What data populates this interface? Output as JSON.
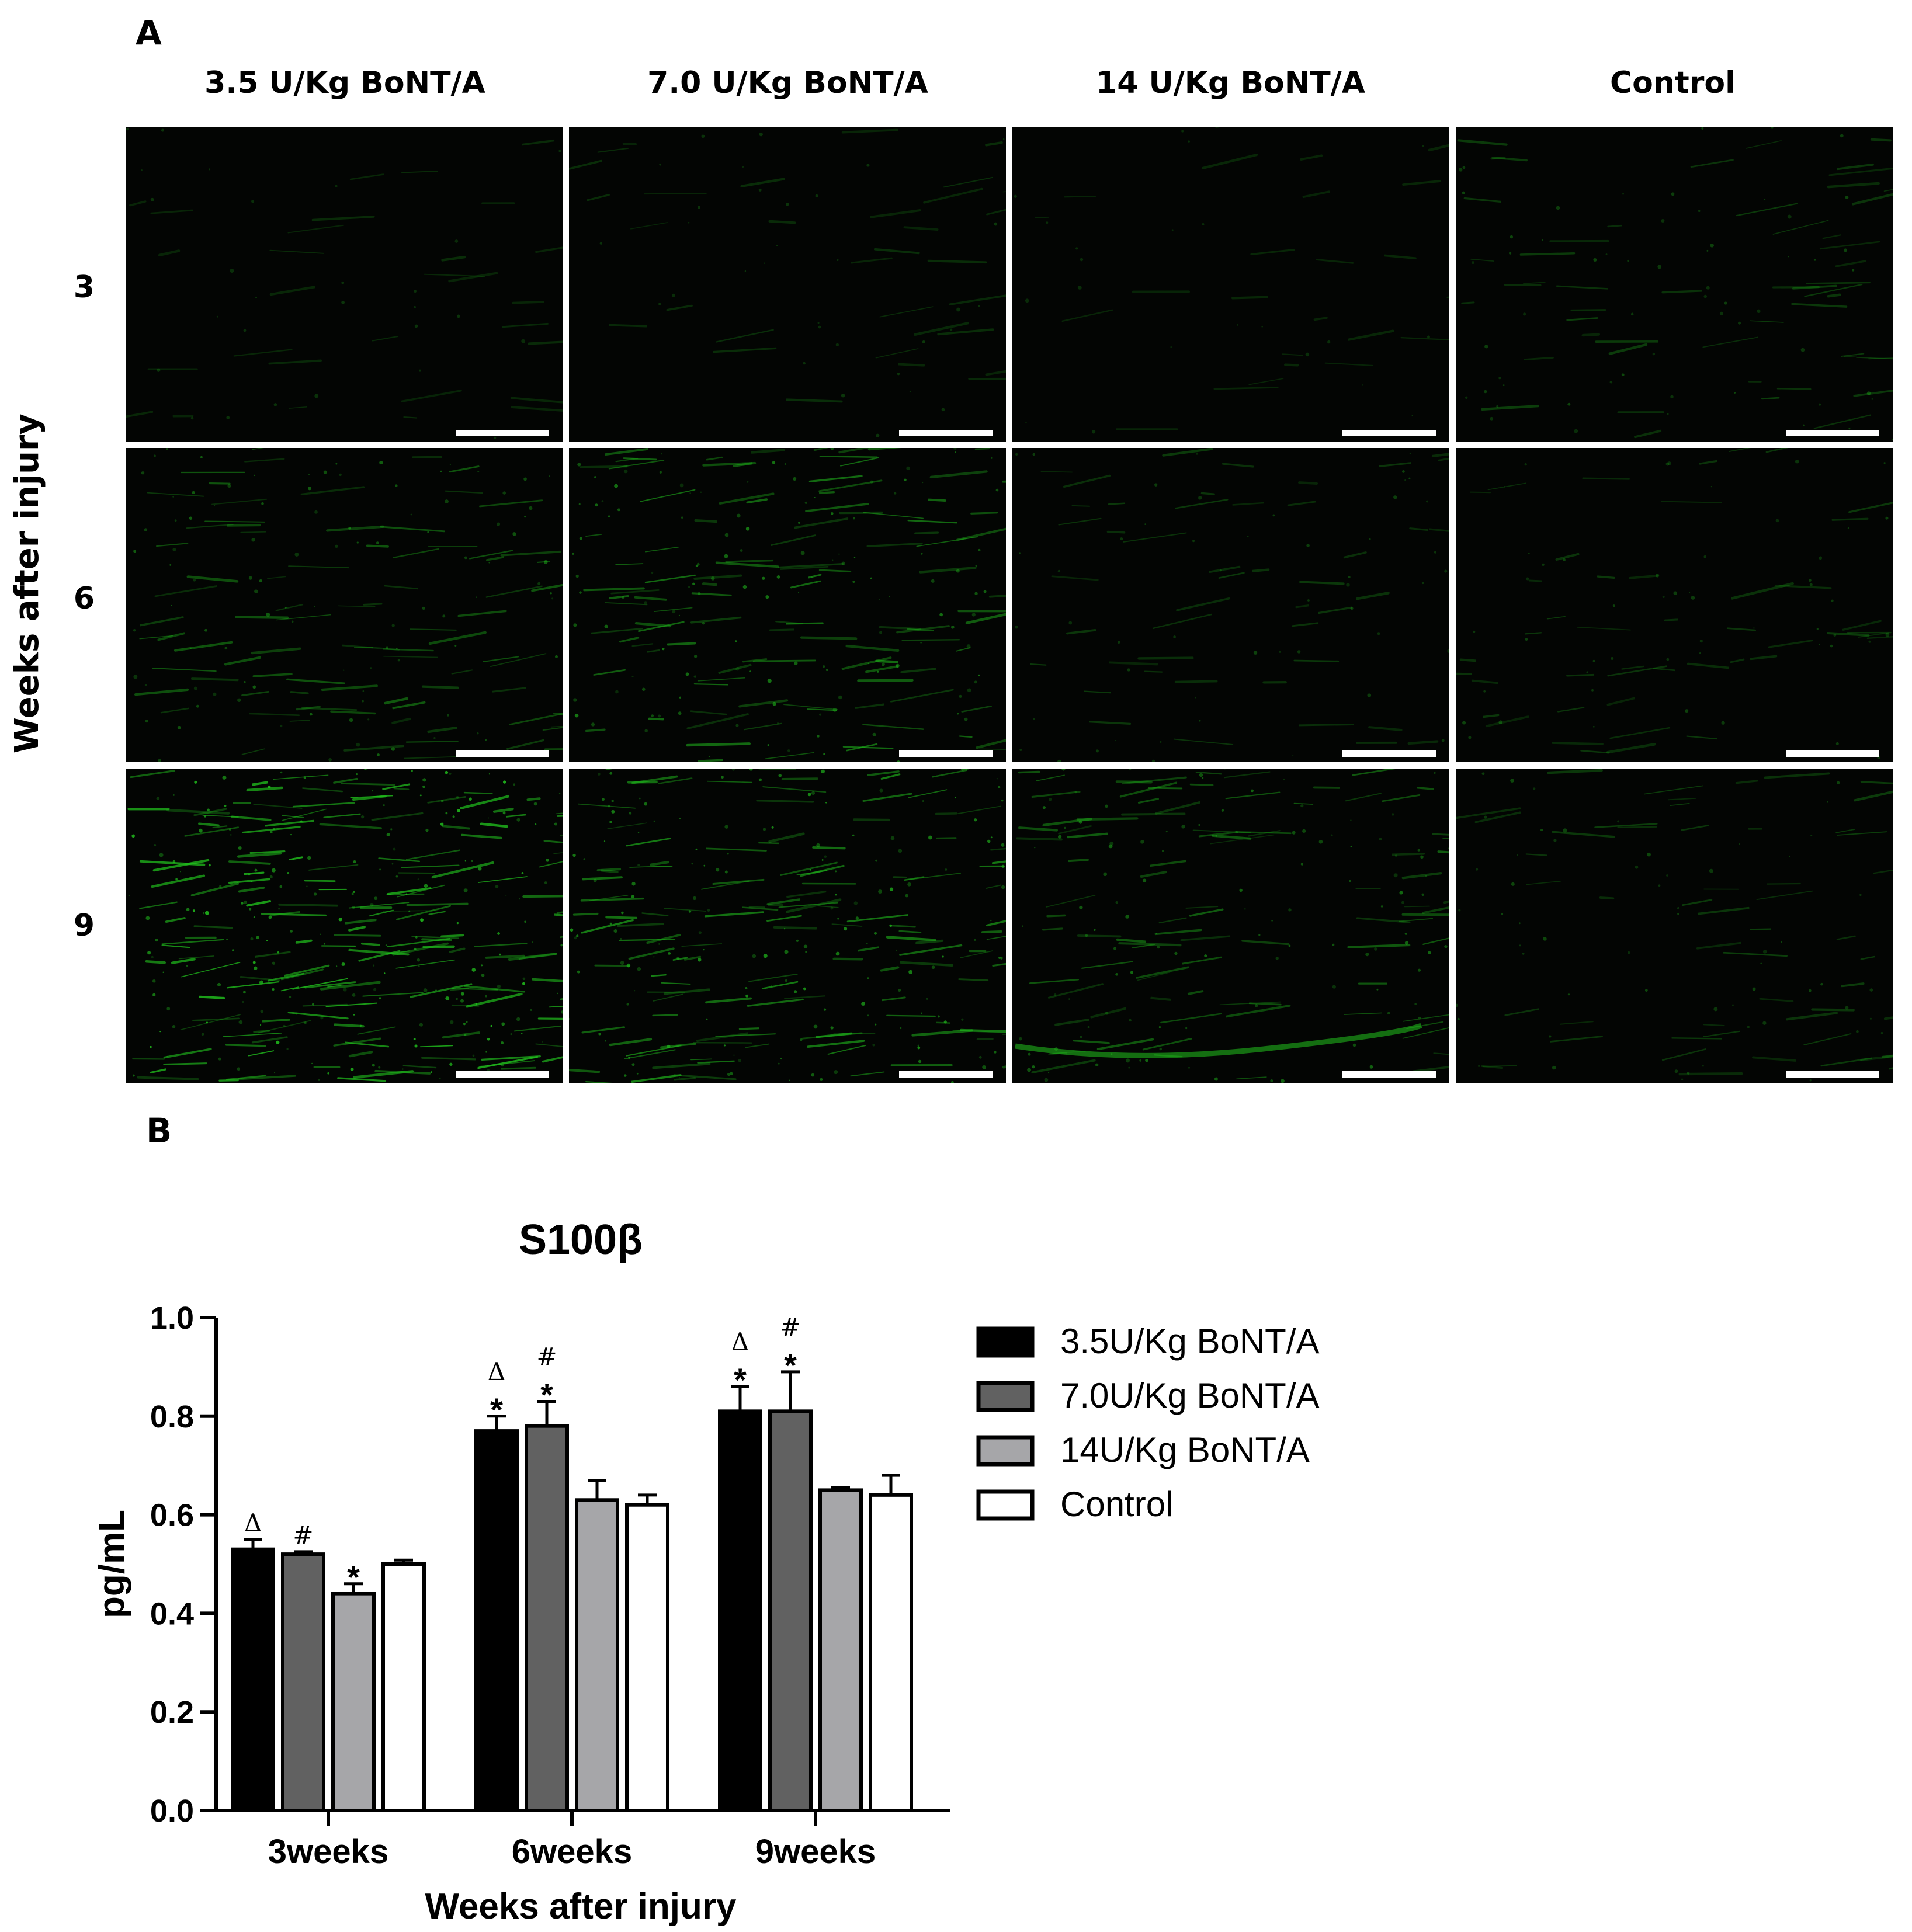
{
  "panel_a": {
    "letter": "A",
    "column_labels": [
      "3.5 U/Kg BoNT/A",
      "7.0 U/Kg BoNT/A",
      "14 U/Kg BoNT/A",
      "Control"
    ],
    "row_labels": [
      "3",
      "6",
      "9"
    ],
    "y_title": "Weeks after injury",
    "colors": {
      "image_background": "#030503",
      "stain": "#22c41e",
      "scale_bar": "#ffffff"
    }
  },
  "panel_b": {
    "letter": "B"
  },
  "chart_data": {
    "type": "bar",
    "title": "S100β",
    "xlabel": "Weeks after injury",
    "ylabel": "pg/mL",
    "ylim": [
      0,
      1.0
    ],
    "yticks": [
      "0.0",
      "0.2",
      "0.4",
      "0.6",
      "0.8",
      "1.0"
    ],
    "categories": [
      "3weeks",
      "6weeks",
      "9weeks"
    ],
    "legend_position": "right",
    "series": [
      {
        "name": "3.5U/Kg BoNT/A",
        "fill": "#000000",
        "values": [
          0.53,
          0.77,
          0.81
        ],
        "errors": [
          0.02,
          0.03,
          0.05
        ],
        "marks": [
          [
            "Δ"
          ],
          [
            "*",
            "Δ"
          ],
          [
            "*",
            "Δ"
          ]
        ]
      },
      {
        "name": "7.0U/Kg BoNT/A",
        "fill": "#616161",
        "values": [
          0.52,
          0.78,
          0.81
        ],
        "errors": [
          0.005,
          0.05,
          0.08
        ],
        "marks": [
          [
            "#"
          ],
          [
            "*",
            "#"
          ],
          [
            "*",
            "#"
          ]
        ]
      },
      {
        "name": "14U/Kg BoNT/A",
        "fill": "#a6a6a9",
        "values": [
          0.44,
          0.63,
          0.65
        ],
        "errors": [
          0.02,
          0.04,
          0.005
        ],
        "marks": [
          [
            "*"
          ],
          [],
          []
        ]
      },
      {
        "name": "Control",
        "fill": "#ffffff",
        "values": [
          0.5,
          0.62,
          0.64
        ],
        "errors": [
          0.008,
          0.02,
          0.04
        ],
        "marks": [
          [],
          [],
          []
        ]
      }
    ]
  }
}
